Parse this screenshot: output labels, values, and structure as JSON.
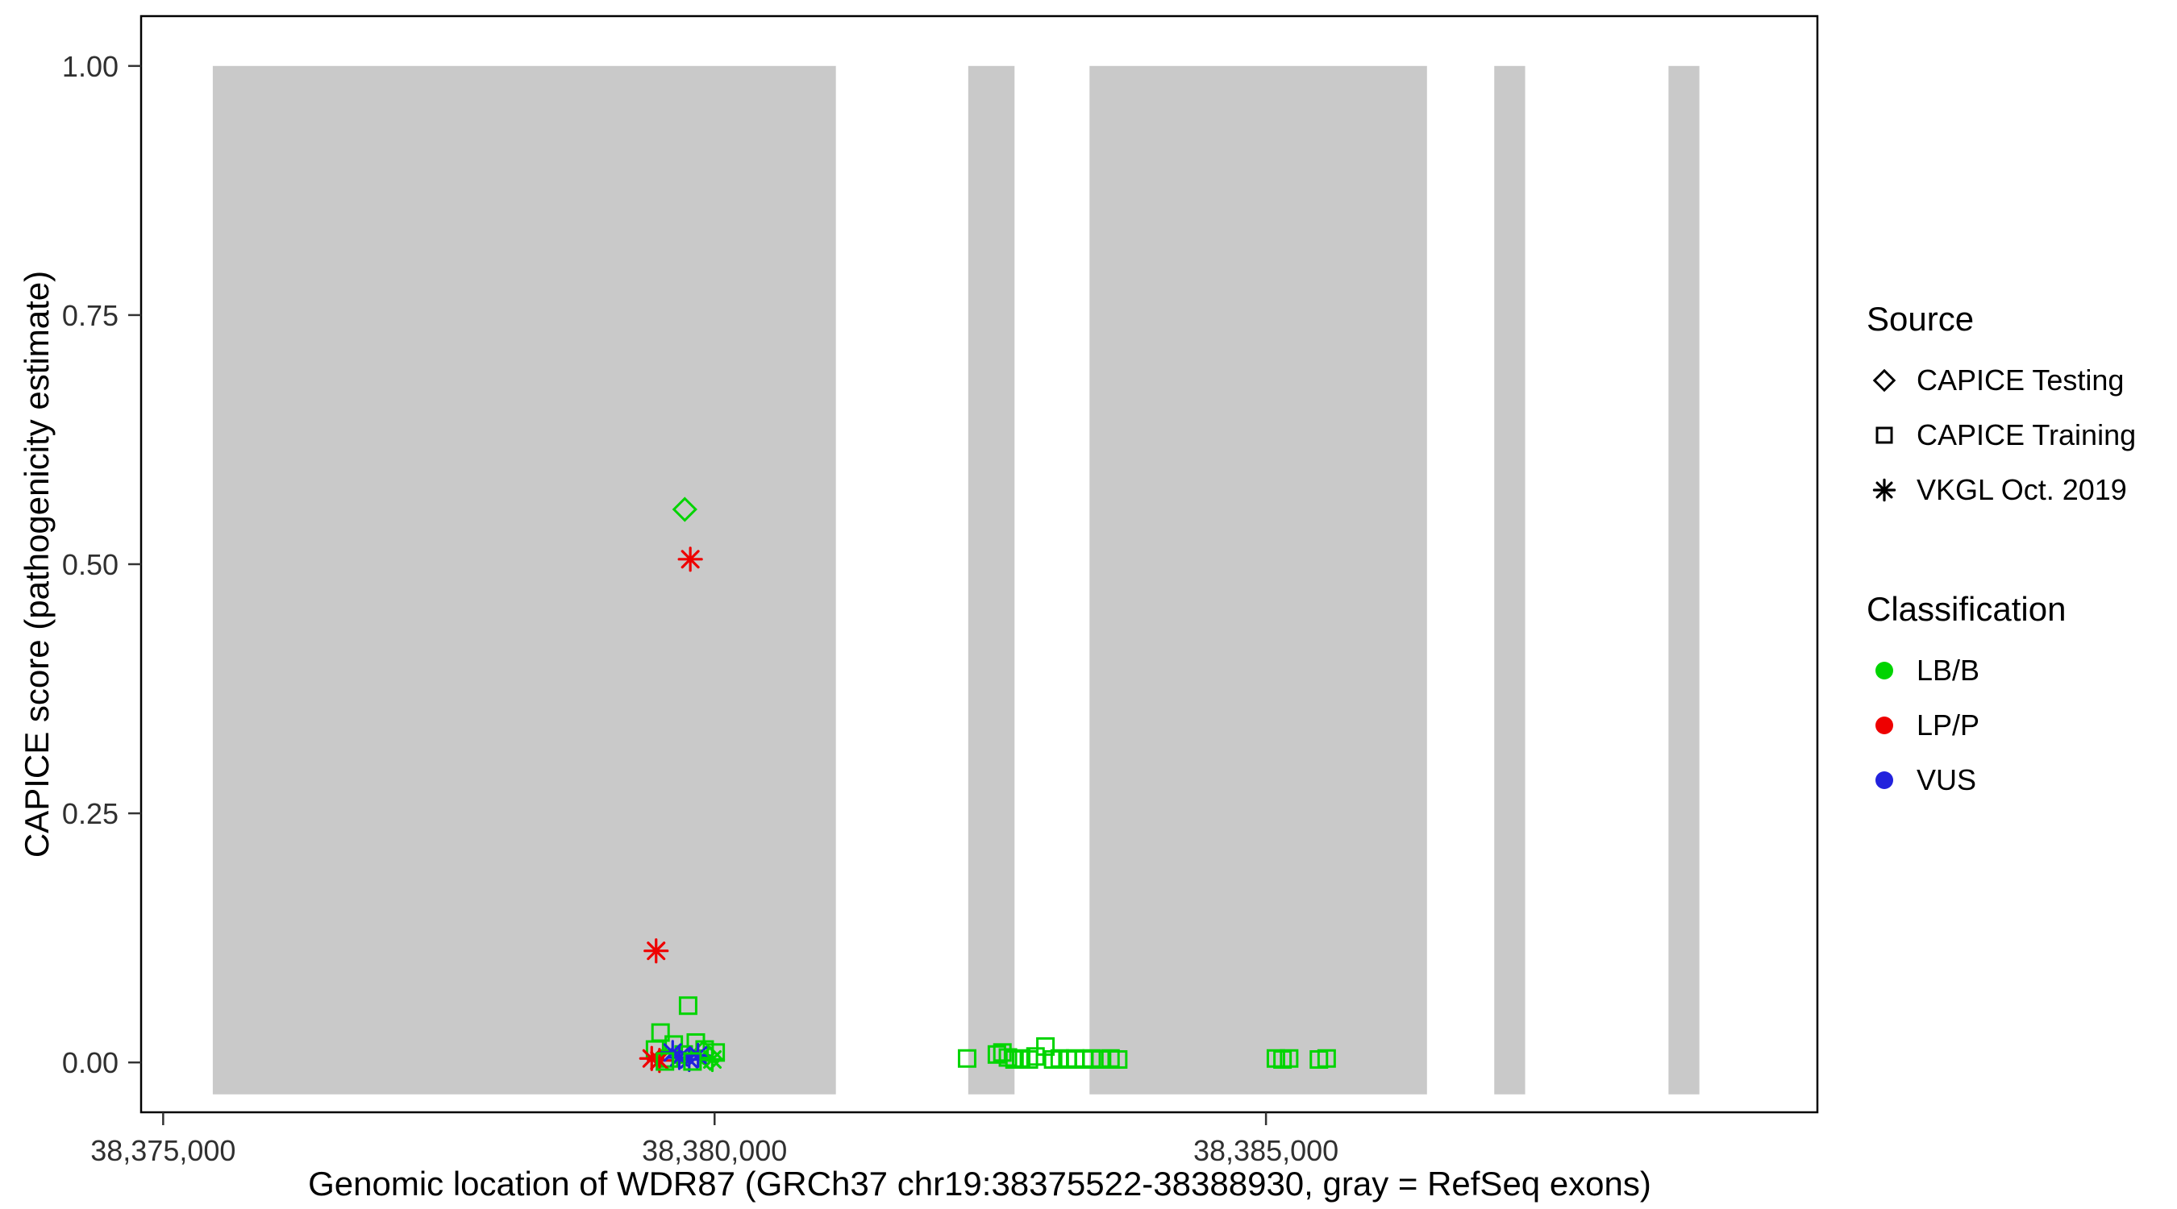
{
  "chart_data": {
    "type": "scatter",
    "title": "",
    "xlabel": "Genomic location of WDR87 (GRCh37 chr19:38375522-38388930, gray = RefSeq exons)",
    "ylabel": "CAPICE score (pathogenicity estimate)",
    "xlim": [
      38374800,
      38390000
    ],
    "ylim": [
      -0.05,
      1.05
    ],
    "grid": "off",
    "x_ticks": [
      {
        "value": 38375000,
        "label": "38,375,000"
      },
      {
        "value": 38380000,
        "label": "38,380,000"
      },
      {
        "value": 38385000,
        "label": "38,385,000"
      }
    ],
    "y_ticks": [
      {
        "value": 0.0,
        "label": "0.00"
      },
      {
        "value": 0.25,
        "label": "0.25"
      },
      {
        "value": 0.5,
        "label": "0.50"
      },
      {
        "value": 0.75,
        "label": "0.75"
      },
      {
        "value": 1.0,
        "label": "1.00"
      }
    ],
    "exon_color": "#c9c9c9",
    "exon_top": 1.0,
    "exon_bottom": -0.032,
    "exons": [
      [
        38375450,
        38381100
      ],
      [
        38382300,
        38382720
      ],
      [
        38383400,
        38386460
      ],
      [
        38387070,
        38387350
      ],
      [
        38388650,
        38388930
      ]
    ],
    "colors": {
      "LB/B": "#00d400",
      "LP/P": "#ee0000",
      "VUS": "#2222dd"
    },
    "shapes": {
      "CAPICE Testing": "diamond",
      "CAPICE Training": "square",
      "VKGL Oct. 2019": "asterisk"
    },
    "legend": {
      "source": {
        "title": "Source",
        "items": [
          {
            "label": "CAPICE Testing",
            "shape": "diamond"
          },
          {
            "label": "CAPICE Training",
            "shape": "square"
          },
          {
            "label": "VKGL Oct. 2019",
            "shape": "asterisk"
          }
        ]
      },
      "classification": {
        "title": "Classification",
        "items": [
          {
            "label": "LB/B",
            "color": "#00d400"
          },
          {
            "label": "LP/P",
            "color": "#ee0000"
          },
          {
            "label": "VUS",
            "color": "#2222dd"
          }
        ]
      }
    },
    "points": [
      {
        "x": 38379730,
        "y": 0.555,
        "source": "CAPICE Testing",
        "classification": "LB/B"
      },
      {
        "x": 38379780,
        "y": 0.505,
        "source": "VKGL Oct. 2019",
        "classification": "LP/P"
      },
      {
        "x": 38379470,
        "y": 0.112,
        "source": "VKGL Oct. 2019",
        "classification": "LP/P"
      },
      {
        "x": 38379760,
        "y": 0.057,
        "source": "CAPICE Training",
        "classification": "LB/B"
      },
      {
        "x": 38379510,
        "y": 0.03,
        "source": "CAPICE Training",
        "classification": "LB/B"
      },
      {
        "x": 38379460,
        "y": 0.013,
        "source": "CAPICE Training",
        "classification": "LB/B"
      },
      {
        "x": 38379630,
        "y": 0.018,
        "source": "CAPICE Training",
        "classification": "LB/B"
      },
      {
        "x": 38379830,
        "y": 0.02,
        "source": "CAPICE Training",
        "classification": "LB/B"
      },
      {
        "x": 38379910,
        "y": 0.013,
        "source": "CAPICE Training",
        "classification": "LB/B"
      },
      {
        "x": 38379720,
        "y": 0.008,
        "source": "CAPICE Training",
        "classification": "LB/B"
      },
      {
        "x": 38379590,
        "y": 0.004,
        "source": "CAPICE Training",
        "classification": "LB/B"
      },
      {
        "x": 38380010,
        "y": 0.01,
        "source": "CAPICE Training",
        "classification": "LB/B"
      },
      {
        "x": 38379900,
        "y": 0.01,
        "source": "CAPICE Testing",
        "classification": "LB/B"
      },
      {
        "x": 38379960,
        "y": 0.004,
        "source": "CAPICE Testing",
        "classification": "LB/B"
      },
      {
        "x": 38379430,
        "y": 0.004,
        "source": "VKGL Oct. 2019",
        "classification": "LP/P"
      },
      {
        "x": 38379500,
        "y": 0.002,
        "source": "VKGL Oct. 2019",
        "classification": "LP/P"
      },
      {
        "x": 38379620,
        "y": 0.01,
        "source": "VKGL Oct. 2019",
        "classification": "VUS"
      },
      {
        "x": 38379680,
        "y": 0.005,
        "source": "VKGL Oct. 2019",
        "classification": "VUS"
      },
      {
        "x": 38379770,
        "y": 0.003,
        "source": "VKGL Oct. 2019",
        "classification": "VUS"
      },
      {
        "x": 38379850,
        "y": 0.007,
        "source": "VKGL Oct. 2019",
        "classification": "VUS"
      },
      {
        "x": 38379980,
        "y": 0.003,
        "source": "VKGL Oct. 2019",
        "classification": "LB/B"
      },
      {
        "x": 38379550,
        "y": 0.001,
        "source": "CAPICE Training",
        "classification": "LB/B"
      },
      {
        "x": 38379800,
        "y": 0.001,
        "source": "CAPICE Training",
        "classification": "LB/B"
      },
      {
        "x": 38382290,
        "y": 0.004,
        "source": "CAPICE Training",
        "classification": "LB/B"
      },
      {
        "x": 38382560,
        "y": 0.008,
        "source": "CAPICE Training",
        "classification": "LB/B"
      },
      {
        "x": 38382610,
        "y": 0.01,
        "source": "CAPICE Training",
        "classification": "LB/B"
      },
      {
        "x": 38382660,
        "y": 0.005,
        "source": "CAPICE Training",
        "classification": "LB/B"
      },
      {
        "x": 38382720,
        "y": 0.003,
        "source": "CAPICE Training",
        "classification": "LB/B"
      },
      {
        "x": 38382780,
        "y": 0.004,
        "source": "CAPICE Training",
        "classification": "LB/B"
      },
      {
        "x": 38382850,
        "y": 0.003,
        "source": "CAPICE Training",
        "classification": "LB/B"
      },
      {
        "x": 38382910,
        "y": 0.006,
        "source": "CAPICE Training",
        "classification": "LB/B"
      },
      {
        "x": 38383000,
        "y": 0.016,
        "source": "CAPICE Training",
        "classification": "LB/B"
      },
      {
        "x": 38383070,
        "y": 0.003,
        "source": "CAPICE Training",
        "classification": "LB/B"
      },
      {
        "x": 38383130,
        "y": 0.004,
        "source": "CAPICE Training",
        "classification": "LB/B"
      },
      {
        "x": 38383200,
        "y": 0.003,
        "source": "CAPICE Training",
        "classification": "LB/B"
      },
      {
        "x": 38383270,
        "y": 0.004,
        "source": "CAPICE Training",
        "classification": "LB/B"
      },
      {
        "x": 38383350,
        "y": 0.003,
        "source": "CAPICE Training",
        "classification": "LB/B"
      },
      {
        "x": 38383420,
        "y": 0.004,
        "source": "CAPICE Training",
        "classification": "LB/B"
      },
      {
        "x": 38383500,
        "y": 0.003,
        "source": "CAPICE Training",
        "classification": "LB/B"
      },
      {
        "x": 38383590,
        "y": 0.004,
        "source": "CAPICE Training",
        "classification": "LB/B"
      },
      {
        "x": 38383660,
        "y": 0.003,
        "source": "CAPICE Training",
        "classification": "LB/B"
      },
      {
        "x": 38385090,
        "y": 0.004,
        "source": "CAPICE Training",
        "classification": "LB/B"
      },
      {
        "x": 38385150,
        "y": 0.003,
        "source": "CAPICE Training",
        "classification": "LB/B"
      },
      {
        "x": 38385210,
        "y": 0.004,
        "source": "CAPICE Training",
        "classification": "LB/B"
      },
      {
        "x": 38385480,
        "y": 0.003,
        "source": "CAPICE Training",
        "classification": "LB/B"
      },
      {
        "x": 38385550,
        "y": 0.004,
        "source": "CAPICE Training",
        "classification": "LB/B"
      }
    ]
  }
}
